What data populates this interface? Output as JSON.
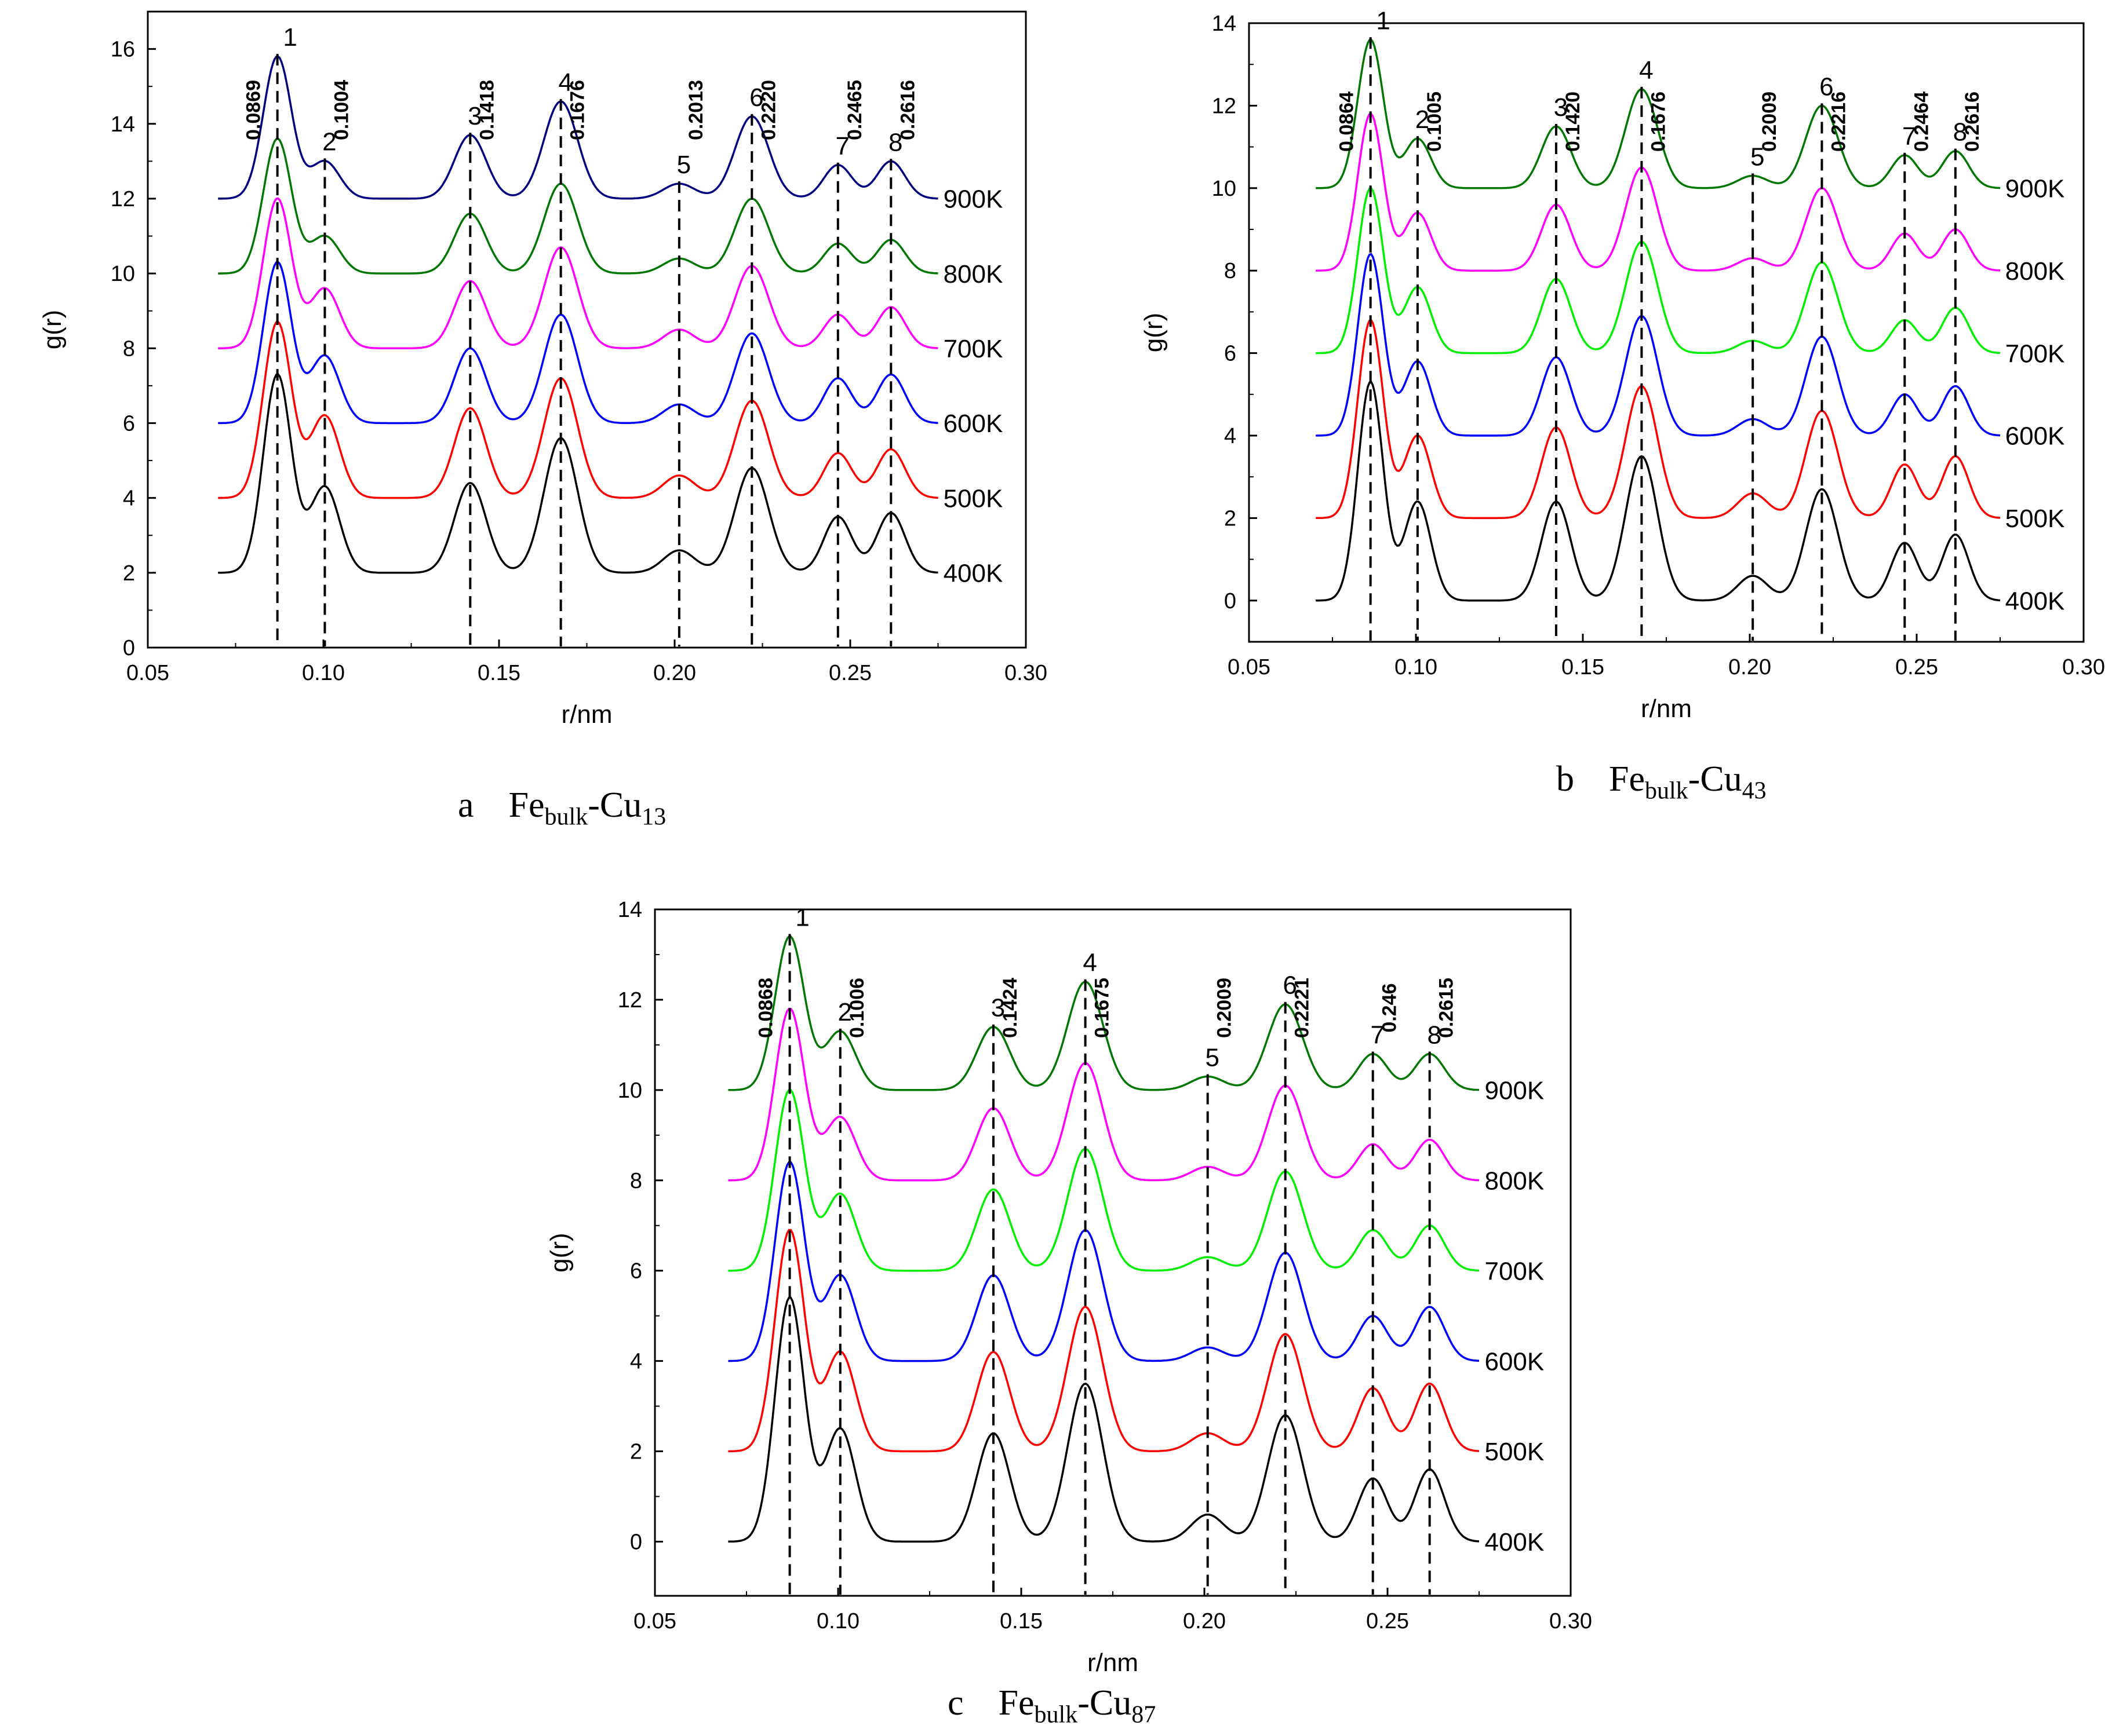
{
  "chart_data": [
    {
      "type": "line",
      "panel": "a",
      "caption_letter": "a",
      "caption_main": "Fe",
      "caption_sub": "bulk",
      "caption_tail": "-Cu",
      "caption_num": "13",
      "xlabel": "r/nm",
      "ylabel": "g(r)",
      "xlim": [
        0.05,
        0.3
      ],
      "ylim": [
        0,
        17
      ],
      "xticks": [
        0.05,
        0.1,
        0.15,
        0.2,
        0.25,
        0.3
      ],
      "xtick_labels": [
        "0.05",
        "0.10",
        "0.15",
        "0.20",
        "0.25",
        "0.30"
      ],
      "yticks": [
        0,
        2,
        4,
        6,
        8,
        10,
        12,
        14,
        16
      ],
      "ytick_labels": [
        "0",
        "2",
        "4",
        "6",
        "8",
        "10",
        "12",
        "14",
        "16"
      ],
      "peaks": [
        {
          "num": "1",
          "r": 0.0869,
          "label": "0.0869"
        },
        {
          "num": "2",
          "r": 0.1004,
          "label": "0.1004"
        },
        {
          "num": "3",
          "r": 0.1418,
          "label": "0.1418"
        },
        {
          "num": "4",
          "r": 0.1676,
          "label": "0.1676"
        },
        {
          "num": "5",
          "r": 0.2013,
          "label": "0.2013"
        },
        {
          "num": "6",
          "r": 0.222,
          "label": "0.2220"
        },
        {
          "num": "7",
          "r": 0.2465,
          "label": "0.2465"
        },
        {
          "num": "8",
          "r": 0.2616,
          "label": "0.2616"
        }
      ],
      "series": [
        {
          "name": "400K",
          "color": "#000000",
          "baseline": 2,
          "amplitudes": [
            5.3,
            2.3,
            2.4,
            3.6,
            0.6,
            2.8,
            1.5,
            1.6
          ]
        },
        {
          "name": "500K",
          "color": "#ff0000",
          "baseline": 4,
          "amplitudes": [
            4.7,
            2.2,
            2.4,
            3.2,
            0.6,
            2.6,
            1.2,
            1.3
          ]
        },
        {
          "name": "600K",
          "color": "#0000ff",
          "baseline": 6,
          "amplitudes": [
            4.3,
            1.8,
            2.0,
            2.9,
            0.5,
            2.4,
            1.2,
            1.3
          ]
        },
        {
          "name": "700K",
          "color": "#ff00ff",
          "baseline": 8,
          "amplitudes": [
            4.0,
            1.6,
            1.8,
            2.7,
            0.5,
            2.2,
            0.9,
            1.1
          ]
        },
        {
          "name": "800K",
          "color": "#007700",
          "baseline": 10,
          "amplitudes": [
            3.6,
            1.0,
            1.6,
            2.4,
            0.4,
            2.0,
            0.8,
            0.9
          ]
        },
        {
          "name": "900K",
          "color": "#000080",
          "baseline": 12,
          "amplitudes": [
            3.8,
            1.0,
            1.7,
            2.6,
            0.4,
            2.2,
            0.9,
            1.0
          ]
        }
      ]
    },
    {
      "type": "line",
      "panel": "b",
      "caption_letter": "b",
      "caption_main": "Fe",
      "caption_sub": "bulk",
      "caption_tail": "-Cu",
      "caption_num": "43",
      "xlabel": "r/nm",
      "ylabel": "g(r)",
      "xlim": [
        0.05,
        0.3
      ],
      "ylim": [
        -1,
        14
      ],
      "xticks": [
        0.05,
        0.1,
        0.15,
        0.2,
        0.25,
        0.3
      ],
      "xtick_labels": [
        "0.05",
        "0.10",
        "0.15",
        "0.20",
        "0.25",
        "0.30"
      ],
      "yticks": [
        0,
        2,
        4,
        6,
        8,
        10,
        12,
        14
      ],
      "ytick_labels": [
        "0",
        "2",
        "4",
        "6",
        "8",
        "10",
        "12",
        "14"
      ],
      "peaks": [
        {
          "num": "1",
          "r": 0.0864,
          "label": "0.0864"
        },
        {
          "num": "2",
          "r": 0.1005,
          "label": "0.1005"
        },
        {
          "num": "3",
          "r": 0.142,
          "label": "0.1420"
        },
        {
          "num": "4",
          "r": 0.1676,
          "label": "0.1676"
        },
        {
          "num": "5",
          "r": 0.2009,
          "label": "0.2009"
        },
        {
          "num": "6",
          "r": 0.2216,
          "label": "0.2216"
        },
        {
          "num": "7",
          "r": 0.2464,
          "label": "0.2464"
        },
        {
          "num": "8",
          "r": 0.2616,
          "label": "0.2616"
        }
      ],
      "series": [
        {
          "name": "400K",
          "color": "#000000",
          "baseline": 0,
          "amplitudes": [
            5.3,
            2.4,
            2.4,
            3.5,
            0.6,
            2.7,
            1.4,
            1.6
          ]
        },
        {
          "name": "500K",
          "color": "#ff0000",
          "baseline": 2,
          "amplitudes": [
            4.8,
            2.0,
            2.2,
            3.2,
            0.6,
            2.6,
            1.3,
            1.5
          ]
        },
        {
          "name": "600K",
          "color": "#0000ff",
          "baseline": 4,
          "amplitudes": [
            4.4,
            1.8,
            1.9,
            2.9,
            0.4,
            2.4,
            1.0,
            1.2
          ]
        },
        {
          "name": "700K",
          "color": "#00ee00",
          "baseline": 6,
          "amplitudes": [
            4.0,
            1.6,
            1.8,
            2.7,
            0.3,
            2.2,
            0.8,
            1.1
          ]
        },
        {
          "name": "800K",
          "color": "#ff00ff",
          "baseline": 8,
          "amplitudes": [
            3.8,
            1.4,
            1.6,
            2.5,
            0.3,
            2.0,
            0.9,
            1.0
          ]
        },
        {
          "name": "900K",
          "color": "#007700",
          "baseline": 10,
          "amplitudes": [
            3.6,
            1.2,
            1.5,
            2.4,
            0.3,
            2.0,
            0.8,
            0.9
          ]
        }
      ]
    },
    {
      "type": "line",
      "panel": "c",
      "caption_letter": "c",
      "caption_main": "Fe",
      "caption_sub": "bulk",
      "caption_tail": "-Cu",
      "caption_num": "87",
      "xlabel": "r/nm",
      "ylabel": "g(r)",
      "xlim": [
        0.05,
        0.3
      ],
      "ylim": [
        -1.2,
        14
      ],
      "xticks": [
        0.05,
        0.1,
        0.15,
        0.2,
        0.25,
        0.3
      ],
      "xtick_labels": [
        "0.05",
        "0.10",
        "0.15",
        "0.20",
        "0.25",
        "0.30"
      ],
      "yticks": [
        0,
        2,
        4,
        6,
        8,
        10,
        12,
        14
      ],
      "ytick_labels": [
        "0",
        "2",
        "4",
        "6",
        "8",
        "10",
        "12",
        "14"
      ],
      "peaks": [
        {
          "num": "1",
          "r": 0.0868,
          "label": "0.0868"
        },
        {
          "num": "2",
          "r": 0.1006,
          "label": "0.1006"
        },
        {
          "num": "3",
          "r": 0.1424,
          "label": "0.1424"
        },
        {
          "num": "4",
          "r": 0.1675,
          "label": "0.1675"
        },
        {
          "num": "5",
          "r": 0.2009,
          "label": "0.2009"
        },
        {
          "num": "6",
          "r": 0.2221,
          "label": "0.2221"
        },
        {
          "num": "7",
          "r": 0.246,
          "label": "0.246"
        },
        {
          "num": "8",
          "r": 0.2615,
          "label": "0.2615"
        }
      ],
      "series": [
        {
          "name": "400K",
          "color": "#000000",
          "baseline": 0,
          "amplitudes": [
            5.4,
            2.5,
            2.4,
            3.5,
            0.6,
            2.8,
            1.4,
            1.6
          ]
        },
        {
          "name": "500K",
          "color": "#ff0000",
          "baseline": 2,
          "amplitudes": [
            4.9,
            2.2,
            2.2,
            3.2,
            0.4,
            2.6,
            1.4,
            1.5
          ]
        },
        {
          "name": "600K",
          "color": "#0000ff",
          "baseline": 4,
          "amplitudes": [
            4.4,
            1.9,
            1.9,
            2.9,
            0.3,
            2.4,
            1.0,
            1.2
          ]
        },
        {
          "name": "700K",
          "color": "#00ee00",
          "baseline": 6,
          "amplitudes": [
            4.0,
            1.7,
            1.8,
            2.7,
            0.3,
            2.2,
            0.9,
            1.0
          ]
        },
        {
          "name": "800K",
          "color": "#ff00ff",
          "baseline": 8,
          "amplitudes": [
            3.8,
            1.4,
            1.6,
            2.6,
            0.3,
            2.1,
            0.8,
            0.9
          ]
        },
        {
          "name": "900K",
          "color": "#007700",
          "baseline": 10,
          "amplitudes": [
            3.4,
            1.3,
            1.4,
            2.4,
            0.3,
            1.9,
            0.8,
            0.8
          ]
        }
      ]
    }
  ]
}
